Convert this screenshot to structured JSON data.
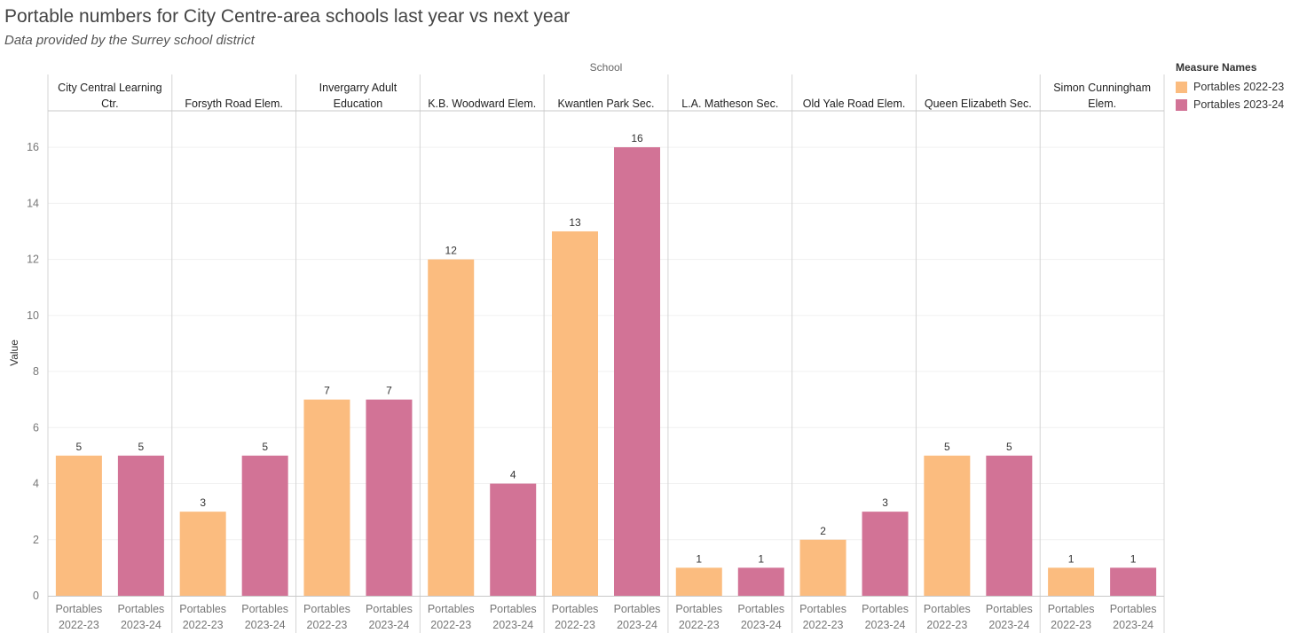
{
  "title": "Portable numbers for City Centre-area schools last year vs next year",
  "subtitle": "Data provided by the Surrey school district",
  "legend": {
    "title": "Measure Names",
    "items": [
      {
        "label": "Portables 2022-23",
        "color": "#fbbc7f"
      },
      {
        "label": "Portables 2023-24",
        "color": "#d27396"
      }
    ]
  },
  "chart_data": {
    "type": "bar",
    "column_header": "School",
    "ylabel": "Value",
    "ylim": [
      0,
      17.3
    ],
    "yticks": [
      0,
      2,
      4,
      6,
      8,
      10,
      12,
      14,
      16
    ],
    "grid": true,
    "categories": [
      [
        "City Central Learning",
        "Ctr."
      ],
      [
        "Forsyth Road Elem."
      ],
      [
        "Invergarry Adult",
        "Education"
      ],
      [
        "K.B. Woodward Elem."
      ],
      [
        "Kwantlen Park Sec."
      ],
      [
        "L.A. Matheson Sec."
      ],
      [
        "Old Yale Road Elem."
      ],
      [
        "Queen Elizabeth Sec."
      ],
      [
        "Simon Cunningham",
        "Elem."
      ]
    ],
    "bar_labels": [
      [
        "Portables",
        "2022-23"
      ],
      [
        "Portables",
        "2023-24"
      ]
    ],
    "series": [
      {
        "name": "Portables 2022-23",
        "color": "#fbbc7f",
        "values": [
          5,
          3,
          7,
          12,
          13,
          1,
          2,
          5,
          1
        ]
      },
      {
        "name": "Portables 2023-24",
        "color": "#d27396",
        "values": [
          5,
          5,
          7,
          4,
          16,
          1,
          3,
          5,
          1
        ]
      }
    ]
  }
}
